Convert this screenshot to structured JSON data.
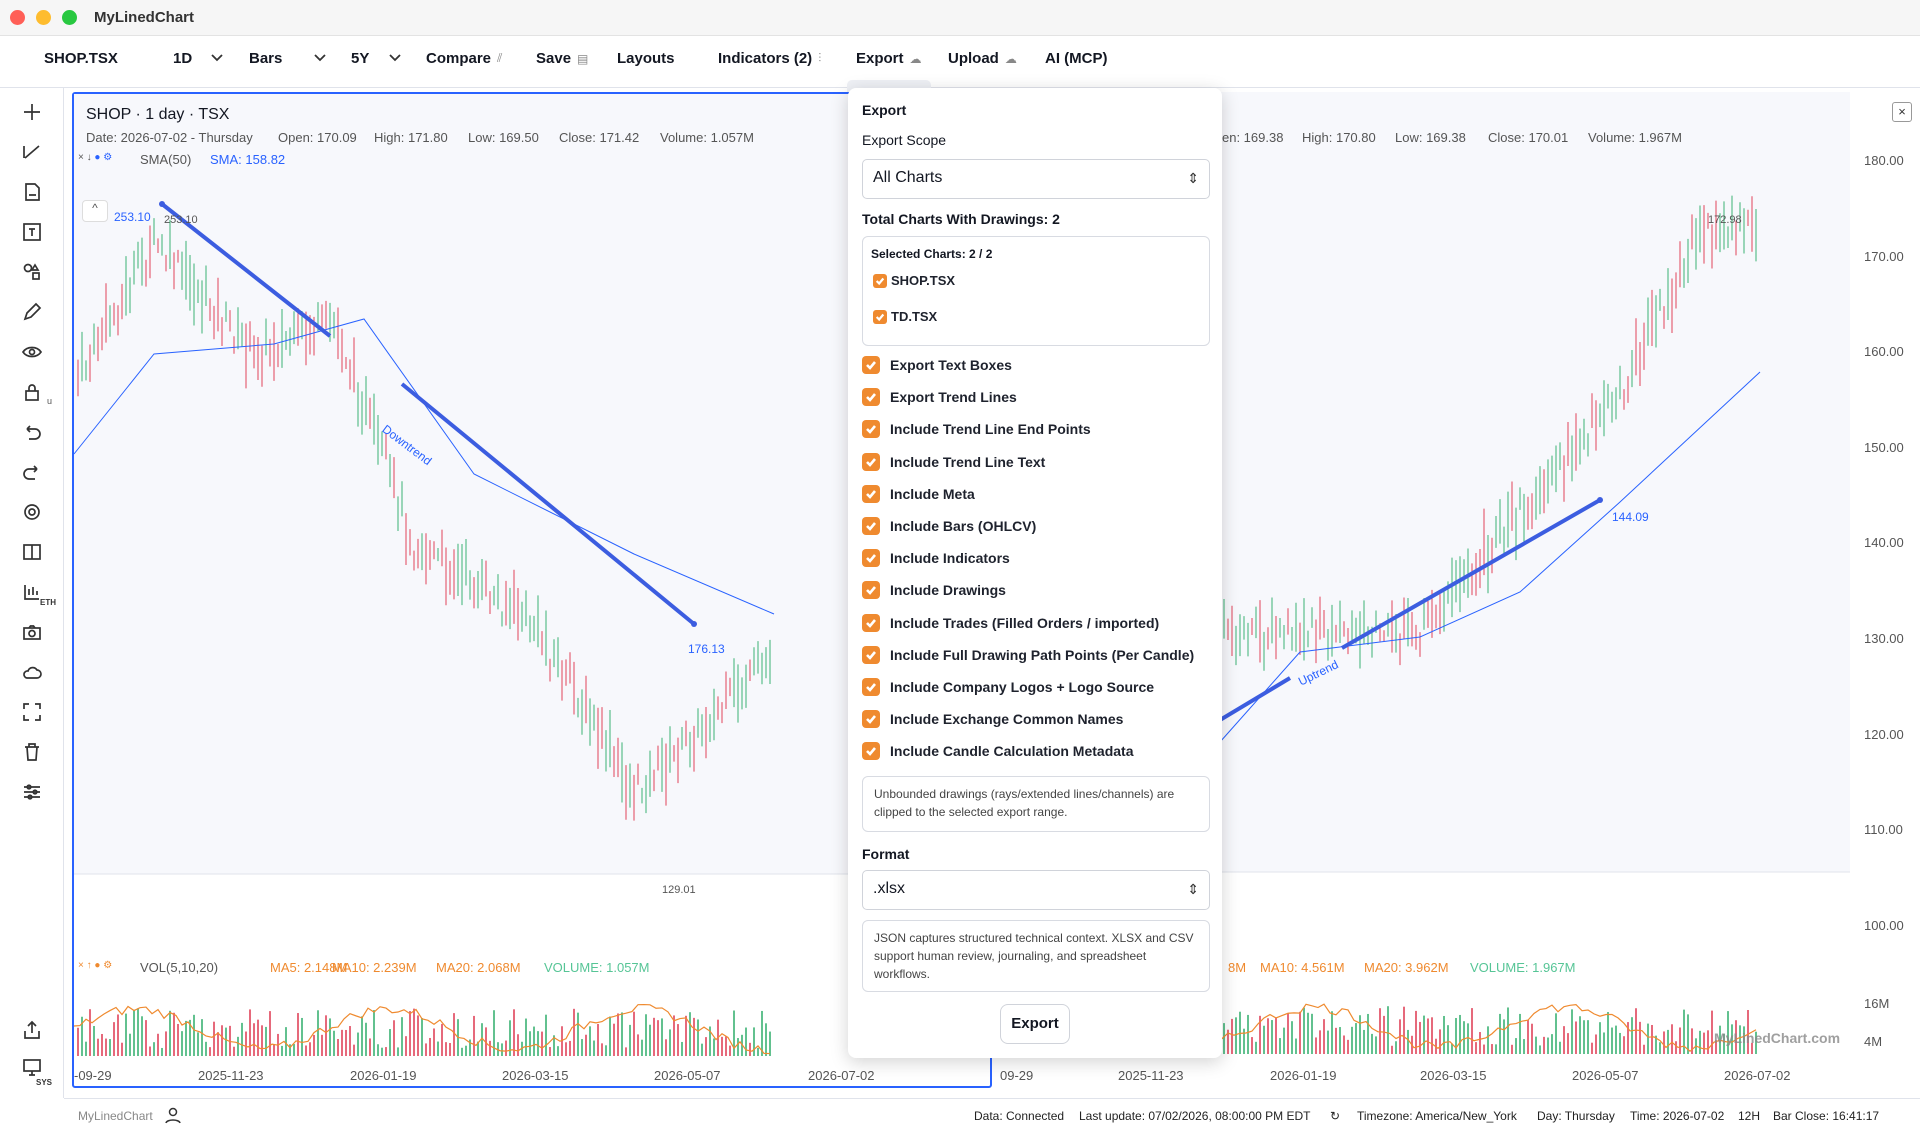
{
  "app": {
    "title": "MyLinedChart"
  },
  "toolbar": {
    "symbol": "SHOP.TSX",
    "interval": "1D",
    "chart_type": "Bars",
    "range": "5Y",
    "compare": "Compare",
    "save": "Save",
    "layouts": "Layouts",
    "indicators": "Indicators (2)",
    "export": "Export",
    "upload": "Upload",
    "ai": "AI (MCP)"
  },
  "chart1": {
    "title": "SHOP · 1 day · TSX",
    "date": "Date: 2026-07-02 - Thursday",
    "open": "Open: 170.09",
    "high": "High: 171.80",
    "low": "Low: 169.50",
    "close": "Close: 171.42",
    "volume": "Volume: 1.057M",
    "sma_label": "SMA(50)",
    "sma_value": "SMA: 158.82",
    "trend_start": "253.10",
    "trend_start_gray": "253.10",
    "trend_end": "176.13",
    "trend_text": "Downtrend",
    "low_label": "129.01",
    "vol_label": "VOL(5,10,20)",
    "ma5": "MA5: 2.148M",
    "ma10": "MA10: 2.239M",
    "ma20": "MA20: 2.068M",
    "vol_value": "VOLUME: 1.057M",
    "x_ticks": [
      "-09-29",
      "2025-11-23",
      "2026-01-19",
      "2026-03-15",
      "2026-05-07",
      "2026-07-02"
    ]
  },
  "chart2": {
    "open_partial": "en: 169.38",
    "high": "High: 170.80",
    "low": "Low: 169.38",
    "close": "Close: 170.01",
    "volume": "Volume: 1.967M",
    "high_label": "172.98",
    "trend_end": "144.09",
    "trend_text": "Uptrend",
    "ma5_partial": "8M",
    "ma10": "MA10: 4.561M",
    "ma20": "MA20: 3.962M",
    "vol_value": "VOLUME: 1.967M",
    "y_ticks": [
      "180.00",
      "170.00",
      "160.00",
      "150.00",
      "140.00",
      "130.00",
      "120.00",
      "110.00",
      "100.00"
    ],
    "vol_ticks": [
      "16M",
      "4M"
    ],
    "watermark": "MyLinedChart.com",
    "x_ticks": [
      "09-29",
      "2025-11-23",
      "2026-01-19",
      "2026-03-15",
      "2026-05-07",
      "2026-07-02"
    ]
  },
  "export_panel": {
    "title": "Export",
    "scope_label": "Export Scope",
    "scope_value": "All Charts",
    "total_label": "Total Charts With Drawings: 2",
    "selected_label": "Selected Charts: 2 / 2",
    "charts": [
      "SHOP.TSX",
      "TD.TSX"
    ],
    "options": [
      "Export Text Boxes",
      "Export Trend Lines",
      "Include Trend Line End Points",
      "Include Trend Line Text",
      "Include Meta",
      "Include Bars (OHLCV)",
      "Include Indicators",
      "Include Drawings",
      "Include Trades (Filled Orders / imported)",
      "Include Full Drawing Path Points (Per Candle)",
      "Include Company Logos + Logo Source",
      "Include Exchange Common Names",
      "Include Candle Calculation Metadata"
    ],
    "unbounded_note": "Unbounded drawings (rays/extended lines/channels) are clipped to the selected export range.",
    "format_label": "Format",
    "format_value": ".xlsx",
    "format_note": "JSON captures structured technical context. XLSX and CSV support human review, journaling, and spreadsheet workflows.",
    "export_button": "Export"
  },
  "left_labels": {
    "eth": "ETH",
    "sys": "SYS",
    "u": "u"
  },
  "status": {
    "brand": "MyLinedChart",
    "data": "Data: Connected",
    "last_update": "Last update: 07/02/2026, 08:00:00 PM EDT",
    "timezone": "Timezone: America/New_York",
    "day": "Day: Thursday",
    "time": "Time: 2026-07-02",
    "hours": "12H",
    "bar_close": "Bar Close: 16:41:17"
  }
}
